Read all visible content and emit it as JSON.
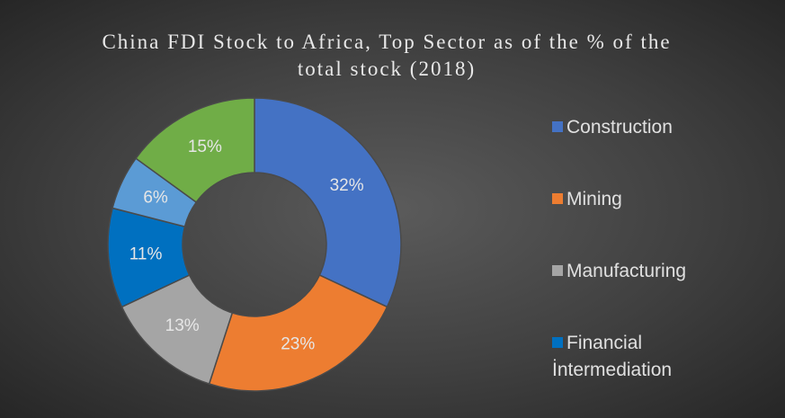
{
  "chart_data": {
    "type": "pie",
    "title": "China FDI Stock to Africa, Top Sector as of the % of the total stock (2018)",
    "categories": [
      "Construction",
      "Mining",
      "Manufacturing",
      "Financial İntermediation",
      null,
      null
    ],
    "values": [
      32,
      23,
      13,
      11,
      6,
      15
    ],
    "value_labels": [
      "32%",
      "23%",
      "13%",
      "11%",
      "6%",
      "15%"
    ],
    "colors": [
      "#4472c4",
      "#ed7d31",
      "#a5a5a5",
      "#0070c0",
      "#5b9bd5",
      "#70ad47"
    ],
    "donut": true,
    "legend": "right"
  }
}
